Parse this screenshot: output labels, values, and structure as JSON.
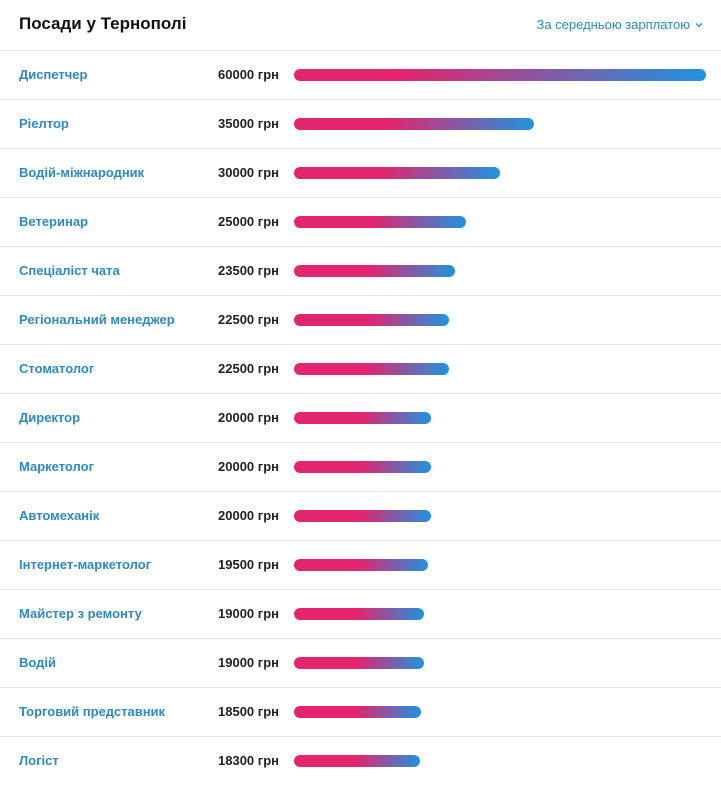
{
  "header": {
    "title": "Посади у Тернополі",
    "sort_label": "За середньою зарплатою"
  },
  "colors": {
    "link": "#2b8ac3",
    "bar_start": "#e2256e",
    "bar_end": "#1f93e0"
  },
  "chart_data": {
    "type": "bar",
    "orientation": "horizontal",
    "title": "Посади у Тернополі",
    "unit": "грн",
    "categories": [
      "Диспетчер",
      "Ріелтор",
      "Водій-міжнародник",
      "Ветеринар",
      "Спеціаліст чата",
      "Регіональний менеджер",
      "Стоматолог",
      "Директор",
      "Маркетолог",
      "Автомеханік",
      "Інтернет-маркетолог",
      "Майстер з ремонту",
      "Водій",
      "Торговий представник",
      "Логіст"
    ],
    "values": [
      60000,
      35000,
      30000,
      25000,
      23500,
      22500,
      22500,
      20000,
      20000,
      20000,
      19500,
      19000,
      19000,
      18500,
      18300
    ],
    "value_labels": [
      "60000 грн",
      "35000 грн",
      "30000 грн",
      "25000 грн",
      "23500 грн",
      "22500 грн",
      "22500 грн",
      "20000 грн",
      "20000 грн",
      "20000 грн",
      "19500 грн",
      "19000 грн",
      "19000 грн",
      "18500 грн",
      "18300 грн"
    ],
    "xlim": [
      0,
      60000
    ]
  }
}
